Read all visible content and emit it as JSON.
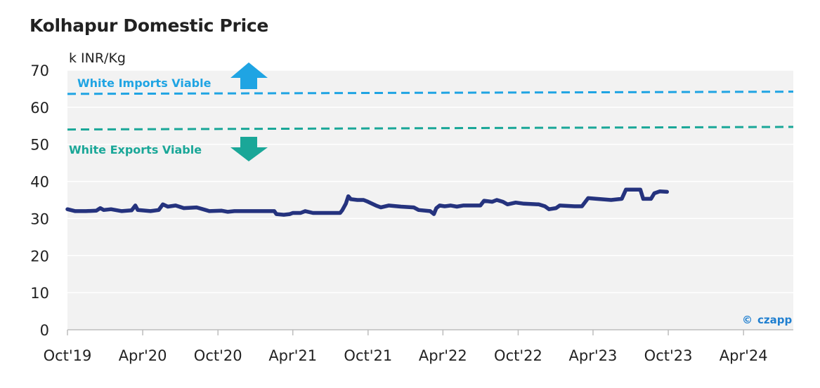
{
  "title": "Kolhapur Domestic Price",
  "colors": {
    "plot_bg": "#f2f2f2",
    "grid": "#ffffff",
    "line": "#25337e",
    "imports": "#1fa4e3",
    "exports": "#1aa798",
    "text": "#222222",
    "brand": "#1f7fd0"
  },
  "chart_data": {
    "type": "line",
    "title": "Kolhapur Domestic Price",
    "ylabel": "k INR/Kg",
    "ylim": [
      0,
      70
    ],
    "yticks": [
      0,
      10,
      20,
      30,
      40,
      50,
      60,
      70
    ],
    "xlim": [
      "2019-10-01",
      "2024-07-31"
    ],
    "xticks": [
      "2019-10-01",
      "2020-04-01",
      "2020-10-01",
      "2021-04-01",
      "2021-10-01",
      "2022-04-01",
      "2022-10-01",
      "2023-04-01",
      "2023-10-01",
      "2024-04-01"
    ],
    "xtick_labels": [
      "Oct'19",
      "Apr'20",
      "Oct'20",
      "Apr'21",
      "Oct'21",
      "Apr'22",
      "Oct'22",
      "Apr'23",
      "Oct'23",
      "Apr'24"
    ],
    "grid": true,
    "series": [
      {
        "values": [
          [
            "2019-10-01",
            32.5
          ],
          [
            "2019-10-20",
            32.0
          ],
          [
            "2019-11-15",
            32.0
          ],
          [
            "2019-12-10",
            32.1
          ],
          [
            "2019-12-20",
            32.8
          ],
          [
            "2019-12-28",
            32.3
          ],
          [
            "2020-01-15",
            32.5
          ],
          [
            "2020-02-10",
            32.0
          ],
          [
            "2020-03-05",
            32.2
          ],
          [
            "2020-03-14",
            33.5
          ],
          [
            "2020-03-20",
            32.3
          ],
          [
            "2020-04-20",
            32.0
          ],
          [
            "2020-05-10",
            32.3
          ],
          [
            "2020-05-20",
            33.8
          ],
          [
            "2020-06-01",
            33.2
          ],
          [
            "2020-06-20",
            33.5
          ],
          [
            "2020-07-10",
            32.8
          ],
          [
            "2020-08-10",
            33.0
          ],
          [
            "2020-09-01",
            32.3
          ],
          [
            "2020-09-10",
            32.0
          ],
          [
            "2020-10-10",
            32.1
          ],
          [
            "2020-10-25",
            31.8
          ],
          [
            "2020-11-10",
            32.0
          ],
          [
            "2021-02-15",
            32.0
          ],
          [
            "2021-02-20",
            31.2
          ],
          [
            "2021-03-10",
            31.0
          ],
          [
            "2021-03-25",
            31.2
          ],
          [
            "2021-04-01",
            31.5
          ],
          [
            "2021-04-20",
            31.5
          ],
          [
            "2021-05-01",
            32.0
          ],
          [
            "2021-05-20",
            31.5
          ],
          [
            "2021-07-25",
            31.5
          ],
          [
            "2021-07-30",
            32.2
          ],
          [
            "2021-08-08",
            34.0
          ],
          [
            "2021-08-14",
            36.0
          ],
          [
            "2021-08-20",
            35.2
          ],
          [
            "2021-09-05",
            35.0
          ],
          [
            "2021-09-20",
            35.0
          ],
          [
            "2021-10-01",
            34.5
          ],
          [
            "2021-10-20",
            33.5
          ],
          [
            "2021-11-01",
            33.0
          ],
          [
            "2021-11-20",
            33.5
          ],
          [
            "2021-12-20",
            33.2
          ],
          [
            "2022-01-20",
            33.0
          ],
          [
            "2022-02-01",
            32.3
          ],
          [
            "2022-03-01",
            32.0
          ],
          [
            "2022-03-10",
            31.2
          ],
          [
            "2022-03-16",
            32.8
          ],
          [
            "2022-03-24",
            33.5
          ],
          [
            "2022-04-05",
            33.3
          ],
          [
            "2022-04-20",
            33.5
          ],
          [
            "2022-05-05",
            33.2
          ],
          [
            "2022-05-20",
            33.5
          ],
          [
            "2022-07-01",
            33.5
          ],
          [
            "2022-07-10",
            34.8
          ],
          [
            "2022-07-30",
            34.5
          ],
          [
            "2022-08-10",
            35.0
          ],
          [
            "2022-08-25",
            34.5
          ],
          [
            "2022-09-05",
            33.8
          ],
          [
            "2022-09-25",
            34.3
          ],
          [
            "2022-10-15",
            34.0
          ],
          [
            "2022-11-20",
            33.8
          ],
          [
            "2022-12-05",
            33.3
          ],
          [
            "2022-12-15",
            32.5
          ],
          [
            "2023-01-01",
            32.8
          ],
          [
            "2023-01-10",
            33.5
          ],
          [
            "2023-02-15",
            33.3
          ],
          [
            "2023-03-05",
            33.3
          ],
          [
            "2023-03-20",
            35.5
          ],
          [
            "2023-04-10",
            35.3
          ],
          [
            "2023-05-15",
            35.0
          ],
          [
            "2023-06-10",
            35.3
          ],
          [
            "2023-06-20",
            37.8
          ],
          [
            "2023-07-05",
            37.8
          ],
          [
            "2023-07-25",
            37.8
          ],
          [
            "2023-08-01",
            35.3
          ],
          [
            "2023-08-20",
            35.3
          ],
          [
            "2023-08-28",
            36.8
          ],
          [
            "2023-09-10",
            37.3
          ],
          [
            "2023-09-28",
            37.2
          ]
        ]
      }
    ],
    "reference_lines": [
      {
        "name": "White Imports Viable",
        "color": "#1fa4e3",
        "style": "dashed",
        "start": [
          "2019-10-01",
          63.6
        ],
        "end": [
          "2024-07-31",
          64.2
        ],
        "arrow": "up"
      },
      {
        "name": "White Exports Viable",
        "color": "#1aa798",
        "style": "dashed",
        "start": [
          "2019-10-01",
          54.0
        ],
        "end": [
          "2024-07-31",
          54.7
        ],
        "arrow": "down"
      }
    ]
  },
  "watermark": {
    "symbol": "©",
    "brand": "czapp"
  }
}
